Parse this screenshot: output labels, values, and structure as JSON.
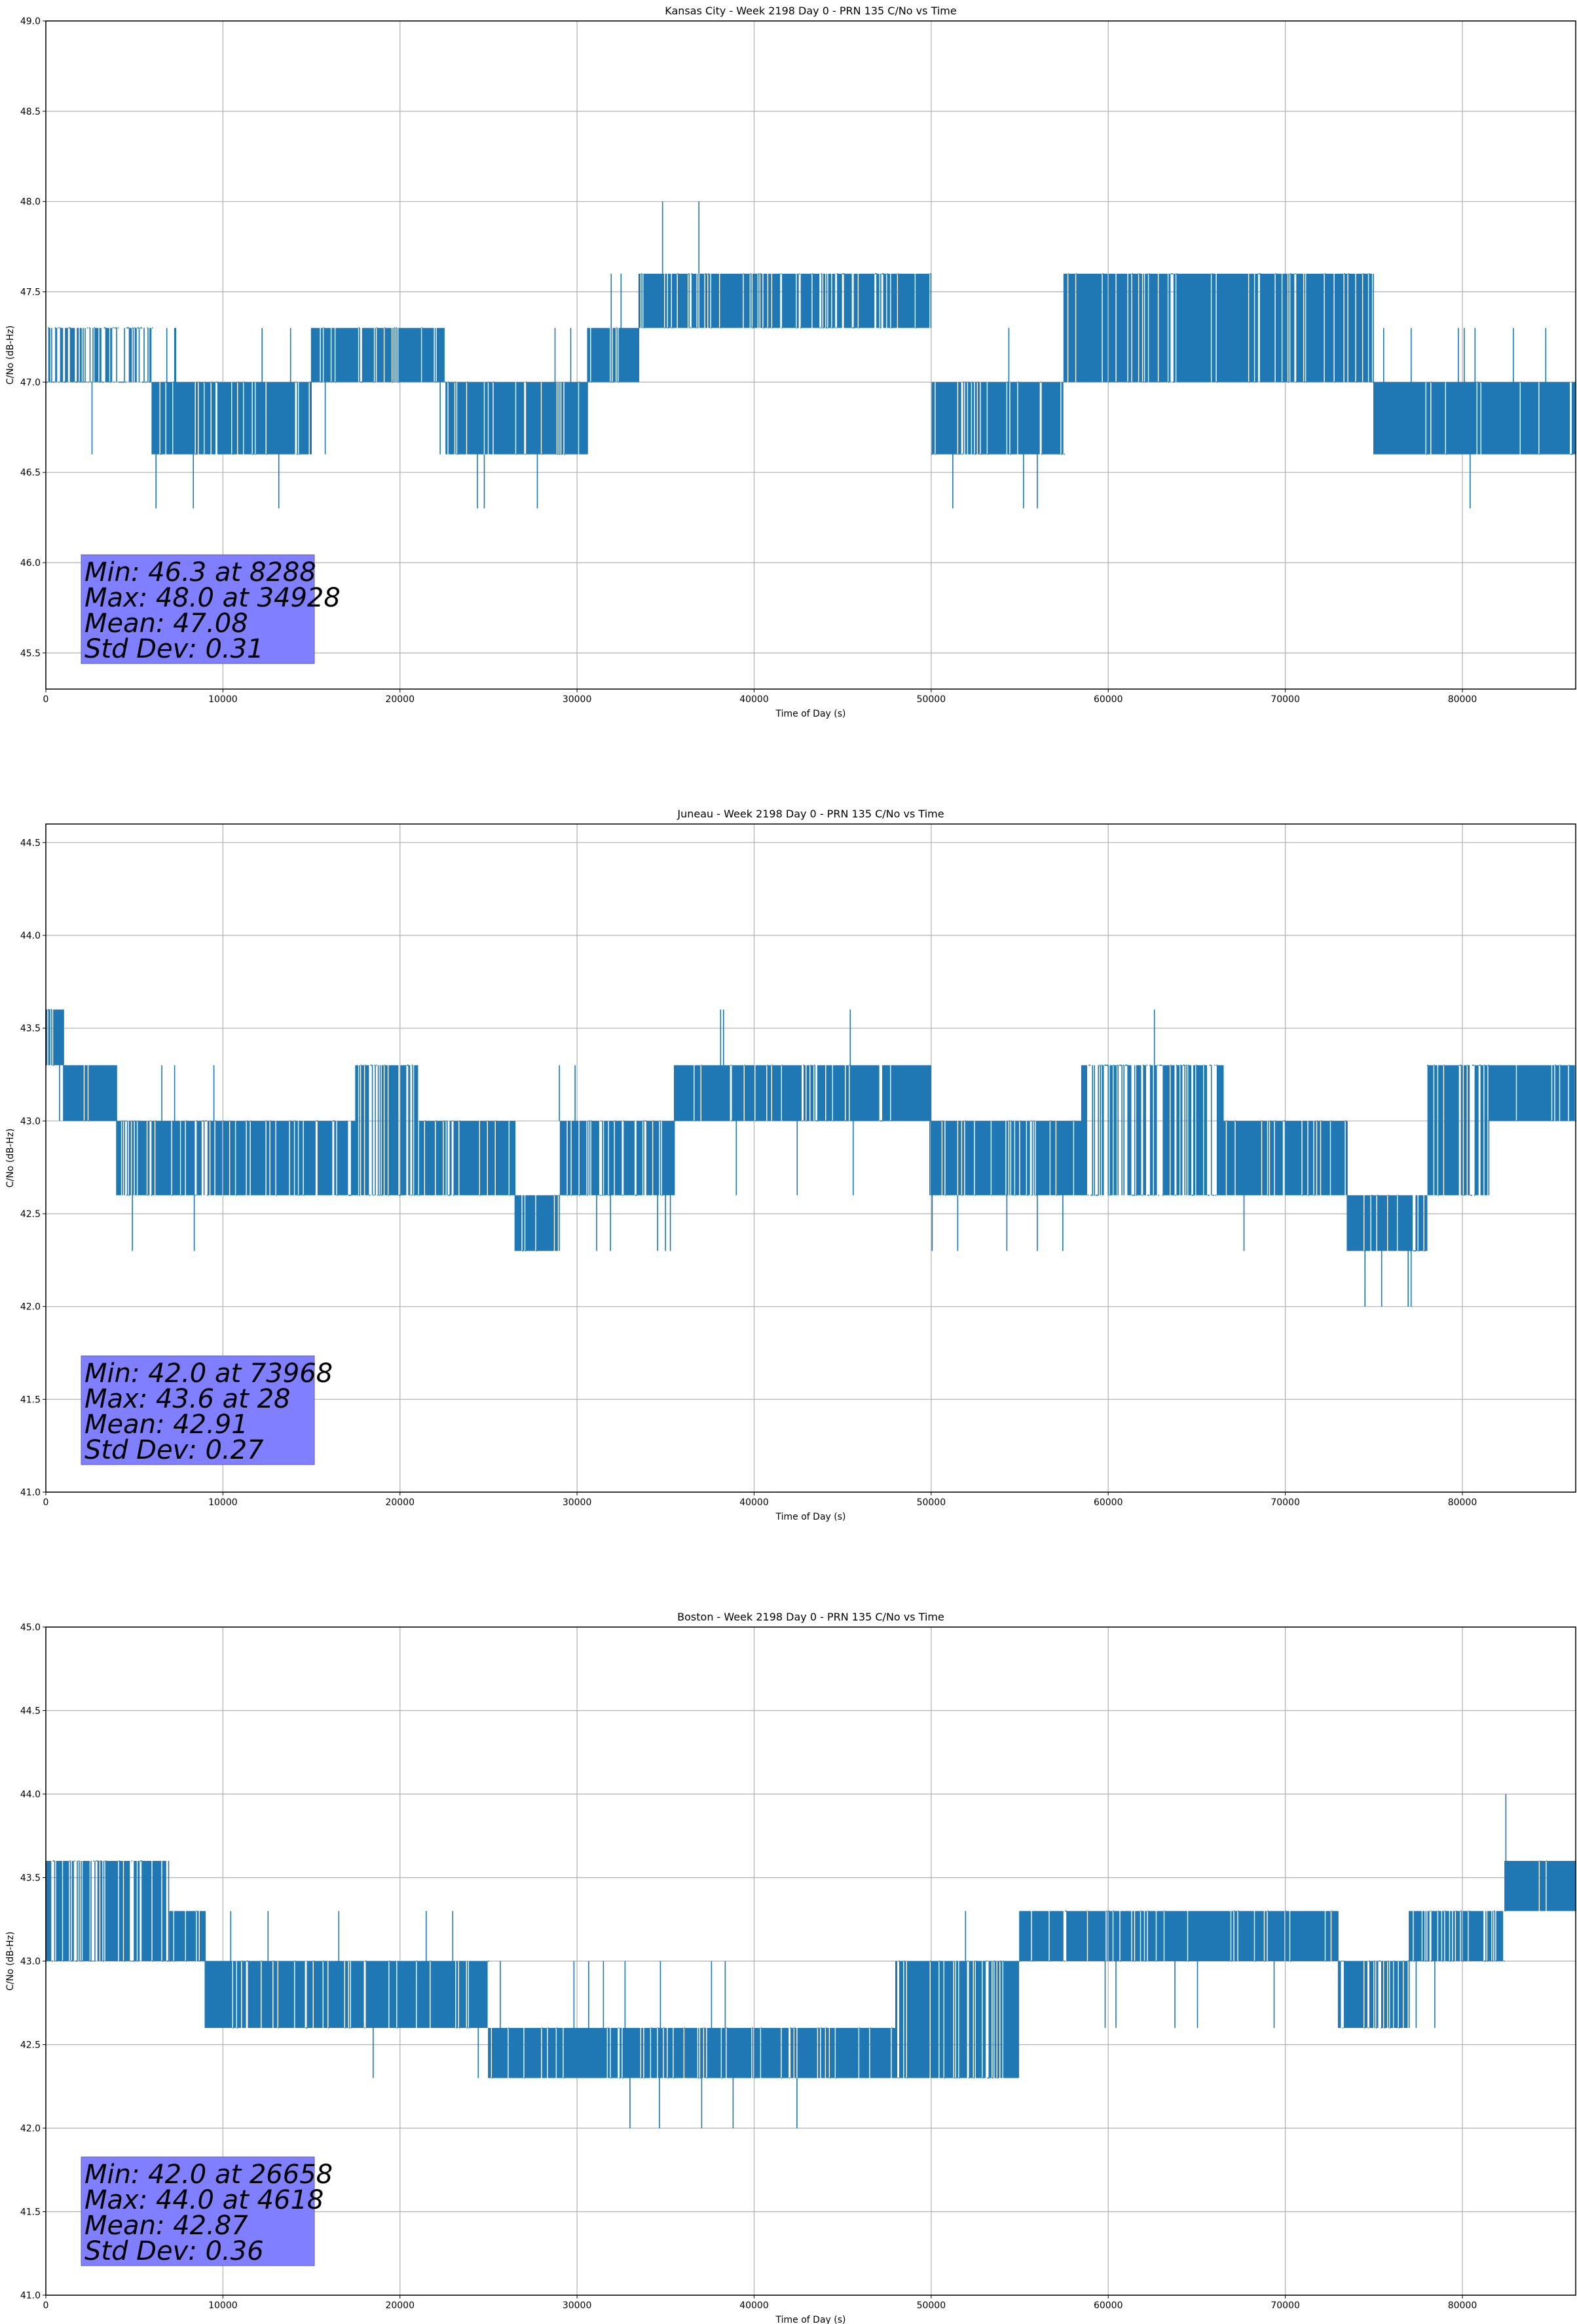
{
  "chart_data": [
    {
      "type": "line",
      "title": "Kansas City - Week 2198 Day 0 - PRN 135 C/No vs Time",
      "xlabel": "Time of Day (s)",
      "ylabel": "C/No (dB-Hz)",
      "xlim": [
        0,
        86400
      ],
      "ylim": [
        45.3,
        49.0
      ],
      "xticks": [
        0,
        10000,
        20000,
        30000,
        40000,
        50000,
        60000,
        70000,
        80000
      ],
      "xtick_labels": [
        "0",
        "10000",
        "20000",
        "30000",
        "40000",
        "50000",
        "60000",
        "70000",
        "80000"
      ],
      "yticks": [
        45.5,
        46.0,
        46.5,
        47.0,
        47.5,
        48.0,
        48.5,
        49.0
      ],
      "ytick_labels": [
        "45.5",
        "46.0",
        "46.5",
        "47.0",
        "47.5",
        "48.0",
        "48.5",
        "49.0"
      ],
      "grid": true,
      "line_color": "#1f77b4",
      "series": [
        {
          "name": "C/No",
          "segments": [
            {
              "t0": 0,
              "t1": 6000,
              "low": 47.0,
              "high": 47.3,
              "dips": 46.6,
              "density": 0.55
            },
            {
              "t0": 6000,
              "t1": 15000,
              "low": 46.6,
              "high": 47.0,
              "dips": 46.3,
              "peaks": 47.3,
              "density": 0.9
            },
            {
              "t0": 15000,
              "t1": 22600,
              "low": 47.0,
              "high": 47.3,
              "dips": 46.6,
              "density": 0.85
            },
            {
              "t0": 22600,
              "t1": 30600,
              "low": 46.6,
              "high": 47.0,
              "dips": 46.3,
              "peaks": 47.3,
              "density": 0.85
            },
            {
              "t0": 30600,
              "t1": 33500,
              "low": 47.0,
              "high": 47.3,
              "peaks": 47.6,
              "density": 0.9
            },
            {
              "t0": 33500,
              "t1": 38500,
              "low": 47.3,
              "high": 47.6,
              "peaks": 48.0,
              "density": 0.8
            },
            {
              "t0": 38500,
              "t1": 50000,
              "low": 47.3,
              "high": 47.6,
              "dips": 47.0,
              "density": 0.8
            },
            {
              "t0": 50000,
              "t1": 57500,
              "low": 46.6,
              "high": 47.0,
              "dips": 46.3,
              "peaks": 47.3,
              "density": 0.85
            },
            {
              "t0": 57500,
              "t1": 75000,
              "low": 47.0,
              "high": 47.6,
              "dips": 47.0,
              "density": 0.85
            },
            {
              "t0": 75000,
              "t1": 86400,
              "low": 46.6,
              "high": 47.0,
              "dips": 46.3,
              "peaks": 47.3,
              "density": 0.95
            }
          ]
        }
      ],
      "stats": {
        "min_label": "Min: 46.3 at 8288",
        "max_label": "Max: 48.0 at 34928",
        "mean_label": "Mean: 47.08",
        "std_label": "Std Dev: 0.31",
        "min": 46.3,
        "min_time": 8288,
        "max": 48.0,
        "max_time": 34928,
        "mean": 47.08,
        "std_dev": 0.31,
        "box_color": "#7f7fff"
      }
    },
    {
      "type": "line",
      "title": "Juneau - Week 2198 Day 0 - PRN 135 C/No vs Time",
      "xlabel": "Time of Day (s)",
      "ylabel": "C/No (dB-Hz)",
      "xlim": [
        0,
        86400
      ],
      "ylim": [
        41.0,
        44.6
      ],
      "xticks": [
        0,
        10000,
        20000,
        30000,
        40000,
        50000,
        60000,
        70000,
        80000
      ],
      "xtick_labels": [
        "0",
        "10000",
        "20000",
        "30000",
        "40000",
        "50000",
        "60000",
        "70000",
        "80000"
      ],
      "yticks": [
        41.0,
        41.5,
        42.0,
        42.5,
        43.0,
        43.5,
        44.0,
        44.5
      ],
      "ytick_labels": [
        "41.0",
        "41.5",
        "42.0",
        "42.5",
        "43.0",
        "43.5",
        "44.0",
        "44.5"
      ],
      "grid": true,
      "line_color": "#1f77b4",
      "series": [
        {
          "name": "C/No",
          "segments": [
            {
              "t0": 0,
              "t1": 1000,
              "low": 43.3,
              "high": 43.6,
              "dips": 43.0,
              "density": 0.8
            },
            {
              "t0": 1000,
              "t1": 4000,
              "low": 43.0,
              "high": 43.3,
              "density": 0.9
            },
            {
              "t0": 4000,
              "t1": 17500,
              "low": 42.6,
              "high": 43.0,
              "dips": 42.3,
              "peaks": 43.3,
              "density": 0.85
            },
            {
              "t0": 17500,
              "t1": 21000,
              "low": 42.6,
              "high": 43.3,
              "density": 0.7
            },
            {
              "t0": 21000,
              "t1": 26500,
              "low": 42.6,
              "high": 43.0,
              "dips": 42.3,
              "density": 0.85
            },
            {
              "t0": 26500,
              "t1": 29000,
              "low": 42.3,
              "high": 42.6,
              "dips": 42.3,
              "density": 0.9
            },
            {
              "t0": 29000,
              "t1": 35500,
              "low": 42.6,
              "high": 43.0,
              "dips": 42.3,
              "peaks": 43.3,
              "density": 0.85
            },
            {
              "t0": 35500,
              "t1": 50000,
              "low": 43.0,
              "high": 43.3,
              "peaks": 43.6,
              "dips": 42.6,
              "density": 0.9
            },
            {
              "t0": 50000,
              "t1": 58500,
              "low": 42.6,
              "high": 43.0,
              "dips": 42.3,
              "density": 0.85
            },
            {
              "t0": 58500,
              "t1": 66500,
              "low": 42.6,
              "high": 43.3,
              "peaks": 43.6,
              "density": 0.6
            },
            {
              "t0": 66500,
              "t1": 73500,
              "low": 42.6,
              "high": 43.0,
              "dips": 42.3,
              "density": 0.85
            },
            {
              "t0": 73500,
              "t1": 78000,
              "low": 42.3,
              "high": 42.6,
              "dips": 42.0,
              "density": 0.9
            },
            {
              "t0": 78000,
              "t1": 81500,
              "low": 42.6,
              "high": 43.3,
              "density": 0.7
            },
            {
              "t0": 81500,
              "t1": 86400,
              "low": 43.0,
              "high": 43.3,
              "peaks": 43.6,
              "density": 0.95
            }
          ]
        }
      ],
      "stats": {
        "min_label": "Min: 42.0 at 73968",
        "max_label": "Max: 43.6 at 28",
        "mean_label": "Mean: 42.91",
        "std_label": "Std Dev: 0.27",
        "min": 42.0,
        "min_time": 73968,
        "max": 43.6,
        "max_time": 28,
        "mean": 42.91,
        "std_dev": 0.27,
        "box_color": "#7f7fff"
      }
    },
    {
      "type": "line",
      "title": "Boston - Week 2198 Day 0 - PRN 135 C/No vs Time",
      "xlabel": "Time of Day (s)",
      "ylabel": "C/No (dB-Hz)",
      "xlim": [
        0,
        86400
      ],
      "ylim": [
        41.0,
        45.0
      ],
      "xticks": [
        0,
        10000,
        20000,
        30000,
        40000,
        50000,
        60000,
        70000,
        80000
      ],
      "xtick_labels": [
        "0",
        "10000",
        "20000",
        "30000",
        "40000",
        "50000",
        "60000",
        "70000",
        "80000"
      ],
      "yticks": [
        41.0,
        41.5,
        42.0,
        42.5,
        43.0,
        43.5,
        44.0,
        44.5,
        45.0
      ],
      "ytick_labels": [
        "41.0",
        "41.5",
        "42.0",
        "42.5",
        "43.0",
        "43.5",
        "44.0",
        "44.5",
        "45.0"
      ],
      "grid": true,
      "line_color": "#1f77b4",
      "series": [
        {
          "name": "C/No",
          "segments": [
            {
              "t0": 0,
              "t1": 7000,
              "low": 43.0,
              "high": 43.6,
              "peaks": 44.0,
              "density": 0.7
            },
            {
              "t0": 7000,
              "t1": 9000,
              "low": 43.0,
              "high": 43.3,
              "density": 0.9
            },
            {
              "t0": 9000,
              "t1": 25000,
              "low": 42.6,
              "high": 43.0,
              "dips": 42.3,
              "peaks": 43.3,
              "density": 0.9
            },
            {
              "t0": 25000,
              "t1": 48000,
              "low": 42.3,
              "high": 42.6,
              "dips": 42.0,
              "peaks": 43.0,
              "density": 0.9
            },
            {
              "t0": 48000,
              "t1": 55000,
              "low": 42.3,
              "high": 43.0,
              "peaks": 43.3,
              "density": 0.75
            },
            {
              "t0": 55000,
              "t1": 73000,
              "low": 43.0,
              "high": 43.3,
              "peaks": 43.6,
              "dips": 42.6,
              "density": 0.9
            },
            {
              "t0": 73000,
              "t1": 77000,
              "low": 42.6,
              "high": 43.0,
              "dips": 42.3,
              "density": 0.85
            },
            {
              "t0": 77000,
              "t1": 82400,
              "low": 43.0,
              "high": 43.3,
              "dips": 42.6,
              "density": 0.7
            },
            {
              "t0": 82400,
              "t1": 86400,
              "low": 43.3,
              "high": 43.6,
              "peaks": 44.0,
              "density": 0.95
            }
          ]
        }
      ],
      "stats": {
        "min_label": "Min: 42.0 at 26658",
        "max_label": "Max: 44.0 at 4618",
        "mean_label": "Mean: 42.87",
        "std_label": "Std Dev: 0.36",
        "min": 42.0,
        "min_time": 26658,
        "max": 44.0,
        "max_time": 4618,
        "mean": 42.87,
        "std_dev": 0.36,
        "box_color": "#7f7fff"
      }
    }
  ]
}
